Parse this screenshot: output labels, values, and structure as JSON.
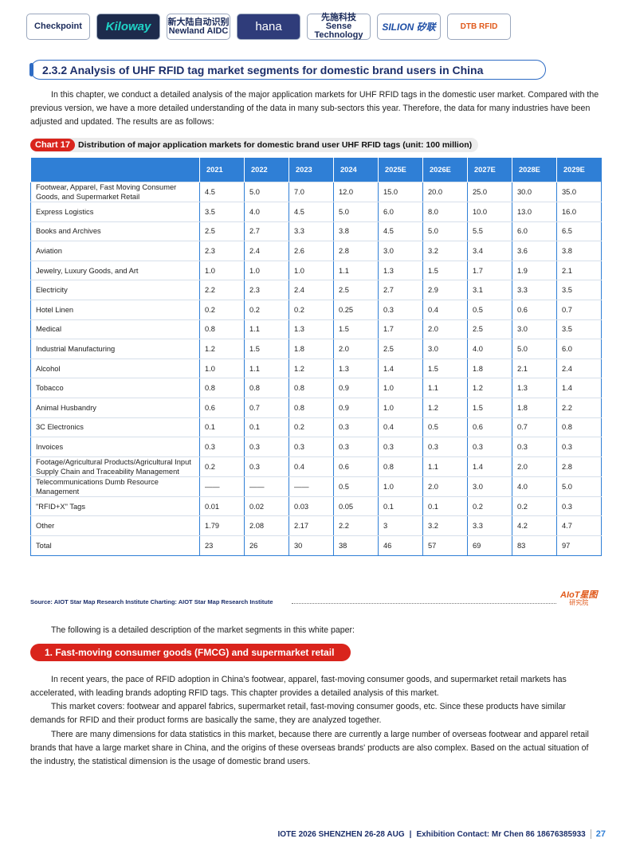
{
  "logos": [
    "Checkpoint",
    "Kiloway",
    "新大陆自动识别 Newland AIDC",
    "hana",
    "先施科技 Sense Technology",
    "SILION 矽联",
    "DTB RFID"
  ],
  "section_title": "2.3.2 Analysis of UHF RFID tag market segments for domestic brand users in China",
  "intro": "In this chapter, we conduct a detailed analysis of the major application markets for UHF RFID tags in the domestic user market. Compared with the previous version, we have a more detailed understanding of the data in many sub-sectors this year. Therefore, the data for many industries have been adjusted and updated. The results are as follows:",
  "table": {
    "label": "Chart 17",
    "title": "Distribution of major application markets for domestic brand user UHF RFID tags (unit: 100 million)",
    "header": [
      "2021",
      "2022",
      "2023",
      "2024",
      "2025E",
      "2026E",
      "2027E",
      "2028E",
      "2029E"
    ],
    "rows": [
      [
        "Footwear, Apparel, Fast Moving Consumer Goods, and Supermarket Retail",
        "4.5",
        "5.0",
        "7.0",
        "12.0",
        "15.0",
        "20.0",
        "25.0",
        "30.0",
        "35.0"
      ],
      [
        "Express Logistics",
        "3.5",
        "4.0",
        "4.5",
        "5.0",
        "6.0",
        "8.0",
        "10.0",
        "13.0",
        "16.0"
      ],
      [
        "Books and Archives",
        "2.5",
        "2.7",
        "3.3",
        "3.8",
        "4.5",
        "5.0",
        "5.5",
        "6.0",
        "6.5"
      ],
      [
        "Aviation",
        "2.3",
        "2.4",
        "2.6",
        "2.8",
        "3.0",
        "3.2",
        "3.4",
        "3.6",
        "3.8"
      ],
      [
        "Jewelry, Luxury Goods, and Art",
        "1.0",
        "1.0",
        "1.0",
        "1.1",
        "1.3",
        "1.5",
        "1.7",
        "1.9",
        "2.1"
      ],
      [
        "Electricity",
        "2.2",
        "2.3",
        "2.4",
        "2.5",
        "2.7",
        "2.9",
        "3.1",
        "3.3",
        "3.5"
      ],
      [
        "Hotel Linen",
        "0.2",
        "0.2",
        "0.2",
        "0.25",
        "0.3",
        "0.4",
        "0.5",
        "0.6",
        "0.7"
      ],
      [
        "Medical",
        "0.8",
        "1.1",
        "1.3",
        "1.5",
        "1.7",
        "2.0",
        "2.5",
        "3.0",
        "3.5"
      ],
      [
        "Industrial Manufacturing",
        "1.2",
        "1.5",
        "1.8",
        "2.0",
        "2.5",
        "3.0",
        "4.0",
        "5.0",
        "6.0"
      ],
      [
        "Alcohol",
        "1.0",
        "1.1",
        "1.2",
        "1.3",
        "1.4",
        "1.5",
        "1.8",
        "2.1",
        "2.4"
      ],
      [
        "Tobacco",
        "0.8",
        "0.8",
        "0.8",
        "0.9",
        "1.0",
        "1.1",
        "1.2",
        "1.3",
        "1.4"
      ],
      [
        "Animal Husbandry",
        "0.6",
        "0.7",
        "0.8",
        "0.9",
        "1.0",
        "1.2",
        "1.5",
        "1.8",
        "2.2"
      ],
      [
        "3C Electronics",
        "0.1",
        "0.1",
        "0.2",
        "0.3",
        "0.4",
        "0.5",
        "0.6",
        "0.7",
        "0.8"
      ],
      [
        "Invoices",
        "0.3",
        "0.3",
        "0.3",
        "0.3",
        "0.3",
        "0.3",
        "0.3",
        "0.3",
        "0.3"
      ],
      [
        "Footage/Agricultural Products/Agricultural Input Supply Chain and Traceability Management",
        "0.2",
        "0.3",
        "0.4",
        "0.6",
        "0.8",
        "1.1",
        "1.4",
        "2.0",
        "2.8"
      ],
      [
        "Telecommunications Dumb Resource Management",
        "——",
        "——",
        "——",
        "0.5",
        "1.0",
        "2.0",
        "3.0",
        "4.0",
        "5.0"
      ],
      [
        "\"RFID+X\" Tags",
        "0.01",
        "0.02",
        "0.03",
        "0.05",
        "0.1",
        "0.1",
        "0.2",
        "0.2",
        "0.3"
      ],
      [
        "Other",
        "1.79",
        "2.08",
        "2.17",
        "2.2",
        "3",
        "3.2",
        "3.3",
        "4.2",
        "4.7"
      ],
      [
        "Total",
        "23",
        "26",
        "30",
        "38",
        "46",
        "57",
        "69",
        "83",
        "97"
      ]
    ]
  },
  "source": "Source: AIOT Star Map Research Institute  Charting: AIOT Star Map Research Institute",
  "watermark": {
    "name": "AIoT星图",
    "sub": "研究院"
  },
  "following": "The following is a detailed description of the market segments in this white paper:",
  "subsection_title": "1. Fast-moving consumer goods (FMCG) and supermarket retail",
  "paragraphs": [
    "In recent years, the pace of RFID adoption in China's footwear, apparel, fast-moving consumer goods, and supermarket retail markets has accelerated, with leading brands adopting RFID tags. This chapter provides a detailed analysis of this market.",
    "This market covers: footwear and apparel fabrics, supermarket retail, fast-moving consumer goods, etc. Since these products have similar demands for RFID and their product forms are basically the same, they are analyzed together.",
    "There are many dimensions for data statistics in this market, because there are currently a large number of overseas footwear and apparel retail brands that have a large market share in China, and the origins of these overseas brands' products are also complex. Based on the actual situation of the industry, the statistical dimension is the usage of domestic brand users."
  ],
  "footer": {
    "event": "IOTE 2026 SHENZHEN 26-28 AUG",
    "contact": "Exhibition Contact:  Mr Chen 86 18676385933",
    "page": "27"
  }
}
